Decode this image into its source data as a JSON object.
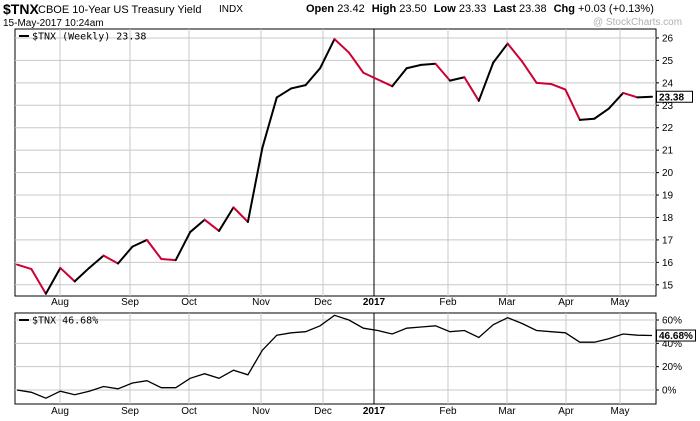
{
  "header": {
    "ticker": "$TNX",
    "name": "CBOE 10-Year US Treasury Yield",
    "exchange": "INDX",
    "date": "15-May-2017 10:24am",
    "open_label": "Open",
    "open": "23.42",
    "high_label": "High",
    "high": "23.50",
    "low_label": "Low",
    "low": "23.33",
    "last_label": "Last",
    "last": "23.38",
    "chg_label": "Chg",
    "chg": "+0.03 (+0.13%)",
    "watermark": "@ StockCharts.com"
  },
  "colors": {
    "up": "#000000",
    "down": "#cc0033",
    "grid": "#c8c8c8",
    "last_box": "#000000"
  },
  "chart_data": [
    {
      "type": "line",
      "legend": "$TNX (Weekly) 23.38",
      "last_value_label": "23.38",
      "ylim": [
        14.5,
        26.4
      ],
      "y_ticks": [
        15,
        16,
        17,
        18,
        19,
        20,
        21,
        22,
        23,
        24,
        25,
        26
      ],
      "x_ticks": [
        "Aug",
        "Sep",
        "Oct",
        "Nov",
        "Dec",
        "2017",
        "Feb",
        "Mar",
        "Apr",
        "May"
      ],
      "bold_ticks": [
        "2017"
      ],
      "values": [
        15.9,
        15.7,
        14.6,
        15.75,
        15.15,
        15.75,
        16.3,
        15.95,
        16.7,
        17.0,
        16.15,
        16.1,
        17.35,
        17.9,
        17.4,
        18.45,
        17.8,
        21.1,
        23.35,
        23.75,
        23.9,
        24.65,
        25.95,
        25.35,
        24.45,
        24.15,
        23.85,
        24.65,
        24.8,
        24.85,
        24.1,
        24.25,
        23.2,
        24.9,
        25.75,
        24.95,
        24.0,
        23.95,
        23.7,
        22.35,
        22.4,
        22.85,
        23.55,
        23.35,
        23.38
      ],
      "segment_colors": [
        "down",
        "down",
        "up",
        "down",
        "up",
        "up",
        "down",
        "up",
        "up",
        "down",
        "down",
        "up",
        "up",
        "down",
        "up",
        "down",
        "up",
        "up",
        "up",
        "up",
        "up",
        "up",
        "down",
        "down",
        "down",
        "down",
        "up",
        "up",
        "up",
        "down",
        "up",
        "down",
        "up",
        "up",
        "down",
        "down",
        "down",
        "down",
        "down",
        "up",
        "up",
        "up",
        "down",
        "up"
      ]
    },
    {
      "type": "line",
      "legend": "$TNX 46.68%",
      "last_value_label": "46.68%",
      "ylim": [
        -12,
        66
      ],
      "y_ticks": [
        0,
        20,
        40,
        60
      ],
      "y_tick_labels": [
        "0%",
        "20%",
        "40%",
        "60%"
      ],
      "x_ticks": [
        "Aug",
        "Sep",
        "Oct",
        "Nov",
        "Dec",
        "2017",
        "Feb",
        "Mar",
        "Apr",
        "May"
      ],
      "bold_ticks": [
        "2017"
      ],
      "values": [
        0,
        -2,
        -7,
        -1,
        -4,
        -1,
        3,
        1,
        6,
        8,
        2,
        2,
        10,
        14,
        10,
        17,
        13,
        34,
        47,
        49,
        50,
        55,
        64,
        60,
        53,
        51,
        48,
        53,
        54,
        55,
        50,
        51,
        45,
        56,
        62,
        57,
        51,
        50,
        49,
        41,
        41,
        44,
        48,
        47,
        46.68
      ]
    }
  ]
}
